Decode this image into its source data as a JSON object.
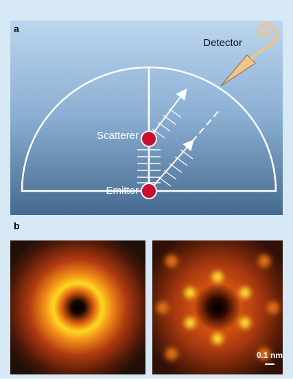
{
  "panel_a": {
    "label": "a",
    "detector": "Detector",
    "scatterer": "Scatterer",
    "emitter": "Emitter"
  },
  "panel_b": {
    "label": "b",
    "scale_bar": "0.1 nm"
  }
}
